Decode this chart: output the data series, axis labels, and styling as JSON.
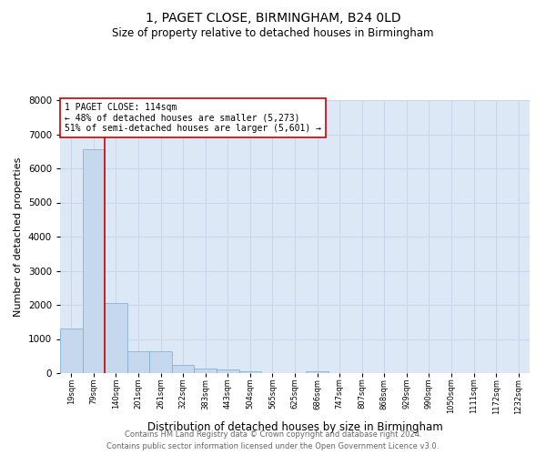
{
  "title": "1, PAGET CLOSE, BIRMINGHAM, B24 0LD",
  "subtitle": "Size of property relative to detached houses in Birmingham",
  "xlabel": "Distribution of detached houses by size in Birmingham",
  "ylabel": "Number of detached properties",
  "bin_labels": [
    "19sqm",
    "79sqm",
    "140sqm",
    "201sqm",
    "261sqm",
    "322sqm",
    "383sqm",
    "443sqm",
    "504sqm",
    "565sqm",
    "625sqm",
    "686sqm",
    "747sqm",
    "807sqm",
    "868sqm",
    "929sqm",
    "990sqm",
    "1050sqm",
    "1111sqm",
    "1172sqm",
    "1232sqm"
  ],
  "bar_values": [
    1300,
    6550,
    2050,
    650,
    650,
    250,
    130,
    100,
    60,
    0,
    0,
    60,
    0,
    0,
    0,
    0,
    0,
    0,
    0,
    0,
    0
  ],
  "bar_color": "#c5d8ed",
  "bar_edge_color": "#7aaad0",
  "vline_x_index": 1,
  "vline_color": "#cc0000",
  "annotation_text": "1 PAGET CLOSE: 114sqm\n← 48% of detached houses are smaller (5,273)\n51% of semi-detached houses are larger (5,601) →",
  "annotation_box_color": "#ffffff",
  "annotation_box_edge": "#cc0000",
  "grid_color": "#c8d8ea",
  "background_color": "#dce8f5",
  "ylim": [
    0,
    8000
  ],
  "yticks": [
    0,
    1000,
    2000,
    3000,
    4000,
    5000,
    6000,
    7000,
    8000
  ],
  "footer_line1": "Contains HM Land Registry data © Crown copyright and database right 2024.",
  "footer_line2": "Contains public sector information licensed under the Open Government Licence v3.0."
}
